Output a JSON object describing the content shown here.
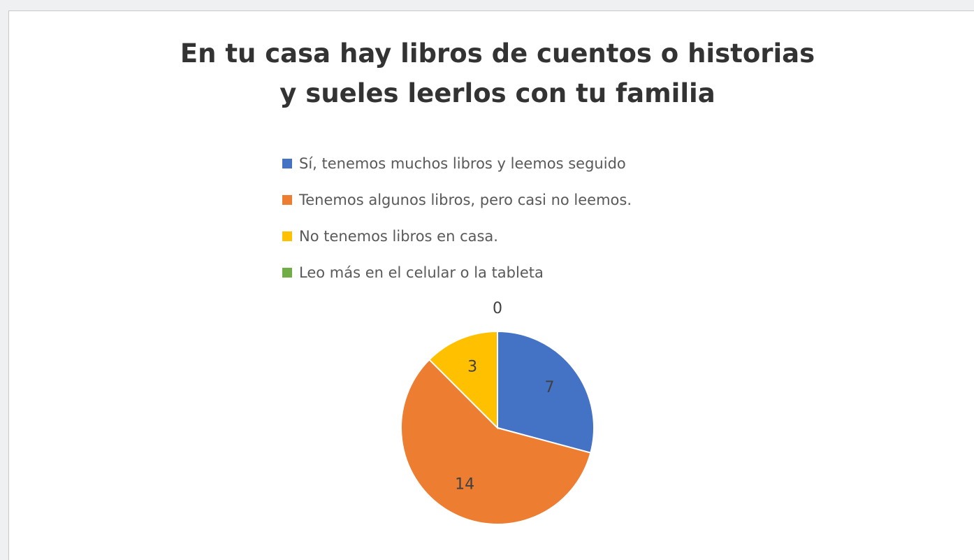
{
  "chart_data": {
    "type": "pie",
    "title": "En tu casa hay libros de cuentos o historias y sueles leerlos con tu familia",
    "categories": [
      "Sí, tenemos muchos libros y leemos seguido",
      "Tenemos algunos libros, pero casi no leemos.",
      "No tenemos libros en casa.",
      "Leo más en el celular o la tableta"
    ],
    "values": [
      7,
      14,
      3,
      0
    ],
    "colors": [
      "#4472c4",
      "#ed7d31",
      "#ffc000",
      "#70ad47"
    ],
    "legend": "top"
  }
}
